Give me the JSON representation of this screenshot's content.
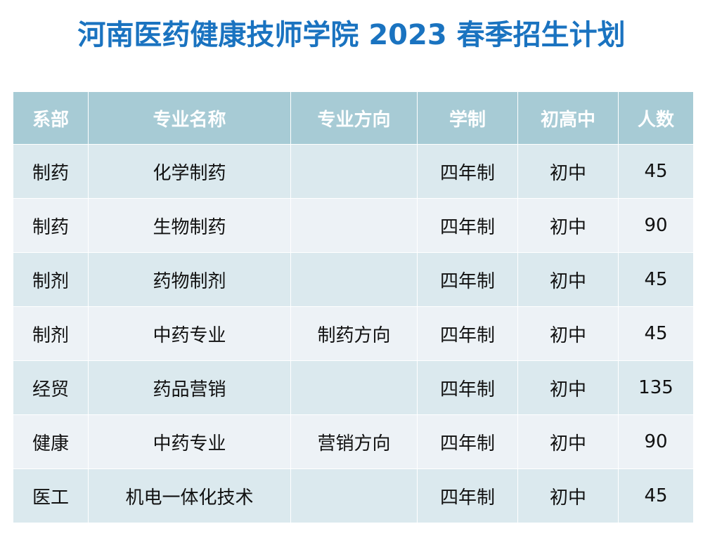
{
  "title": "河南医药健康技师学院 2023 春季招生计划",
  "table": {
    "headers": [
      "系部",
      "专业名称",
      "专业方向",
      "学制",
      "初高中",
      "人数"
    ],
    "rows": [
      [
        "制药",
        "化学制药",
        "",
        "四年制",
        "初中",
        "45"
      ],
      [
        "制药",
        "生物制药",
        "",
        "四年制",
        "初中",
        "90"
      ],
      [
        "制剂",
        "药物制剂",
        "",
        "四年制",
        "初中",
        "45"
      ],
      [
        "制剂",
        "中药专业",
        "制药方向",
        "四年制",
        "初中",
        "45"
      ],
      [
        "经贸",
        "药品营销",
        "",
        "四年制",
        "初中",
        "135"
      ],
      [
        "健康",
        "中药专业",
        "营销方向",
        "四年制",
        "初中",
        "90"
      ],
      [
        "医工",
        "机电一体化技术",
        "",
        "四年制",
        "初中",
        "45"
      ]
    ]
  },
  "colors": {
    "title": "#1a73c0",
    "header_bg": "#a7cbd5",
    "row_odd": "#dbe9ee",
    "row_even": "#edf2f6"
  }
}
